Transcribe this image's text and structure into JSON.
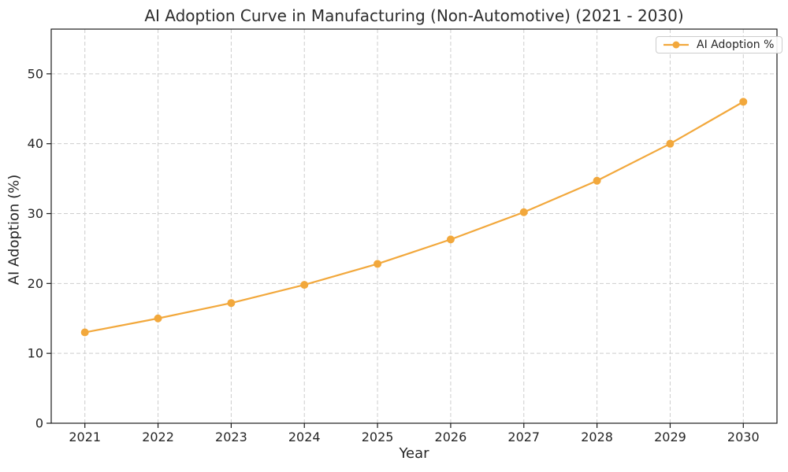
{
  "chart_data": {
    "type": "line",
    "title": "AI Adoption Curve in Manufacturing (Non-Automotive) (2021 - 2030)",
    "xlabel": "Year",
    "ylabel": "AI Adoption (%)",
    "x": [
      2021,
      2022,
      2023,
      2024,
      2025,
      2026,
      2027,
      2028,
      2029,
      2030
    ],
    "series": [
      {
        "name": "AI Adoption %",
        "values": [
          13.0,
          15.0,
          17.2,
          19.8,
          22.8,
          26.3,
          30.2,
          34.7,
          40.0,
          46.0
        ],
        "color": "#F2A83C",
        "marker": "circle",
        "line_width": 2.2,
        "marker_radius": 5
      }
    ],
    "xticks": [
      2021,
      2022,
      2023,
      2024,
      2025,
      2026,
      2027,
      2028,
      2029,
      2030
    ],
    "yticks": [
      0,
      10,
      20,
      30,
      40,
      50
    ],
    "xlim": [
      2020.54,
      2030.46
    ],
    "ylim": [
      0,
      56.4
    ],
    "grid": {
      "visible": true,
      "style": "dashed",
      "color": "#cdcdcd"
    },
    "legend": {
      "position": "upper right",
      "labels": [
        "AI Adoption %"
      ]
    },
    "colors": {
      "text": "#262626",
      "spine": "#1a1a1a",
      "background": "#ffffff"
    }
  }
}
